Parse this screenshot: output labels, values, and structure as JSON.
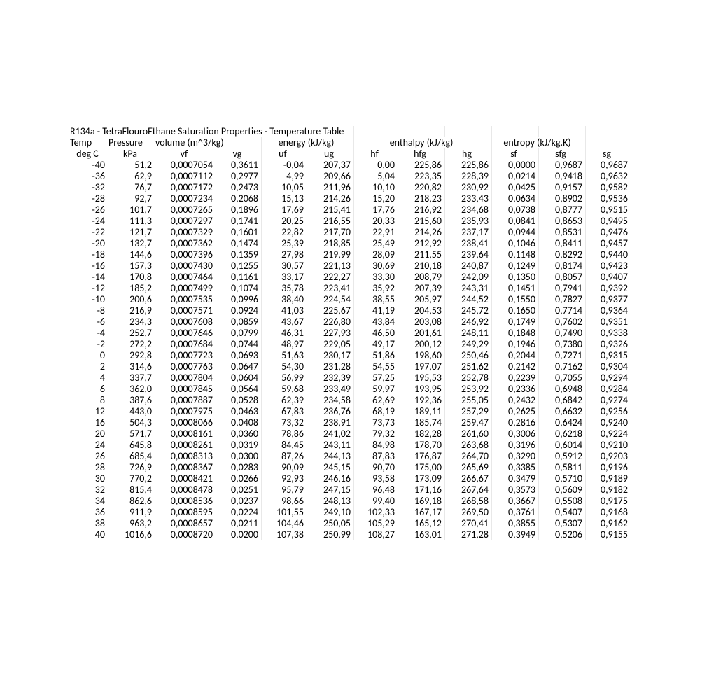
{
  "title": "R134a - TetraFlouroEthane Saturation Properties  - Temperature Table",
  "group_headers": {
    "temp": "Temp",
    "pressure": "Pressure",
    "volume": "volume (m^3/kg)",
    "energy": "energy (kJ/kg)",
    "enthalpy": "enthalpy (kJ/kg)",
    "entropy": "entropy (kJ/kg.K)"
  },
  "col_headers": {
    "temp": "deg C",
    "pressure": "kPa",
    "vf": "vf",
    "vg": "vg",
    "uf": "uf",
    "ug": "ug",
    "hf": "hf",
    "hfg": "hfg",
    "hg": "hg",
    "sf": "sf",
    "sfg": "sfg",
    "sg": "sg"
  },
  "rows": [
    [
      "-40",
      "51,2",
      "0,0007054",
      "0,3611",
      "-0,04",
      "207,37",
      "0,00",
      "225,86",
      "225,86",
      "0,0000",
      "0,9687",
      "0,9687"
    ],
    [
      "-36",
      "62,9",
      "0,0007112",
      "0,2977",
      "4,99",
      "209,66",
      "5,04",
      "223,35",
      "228,39",
      "0,0214",
      "0,9418",
      "0,9632"
    ],
    [
      "-32",
      "76,7",
      "0,0007172",
      "0,2473",
      "10,05",
      "211,96",
      "10,10",
      "220,82",
      "230,92",
      "0,0425",
      "0,9157",
      "0,9582"
    ],
    [
      "-28",
      "92,7",
      "0,0007234",
      "0,2068",
      "15,13",
      "214,26",
      "15,20",
      "218,23",
      "233,43",
      "0,0634",
      "0,8902",
      "0,9536"
    ],
    [
      "-26",
      "101,7",
      "0,0007265",
      "0,1896",
      "17,69",
      "215,41",
      "17,76",
      "216,92",
      "234,68",
      "0,0738",
      "0,8777",
      "0,9515"
    ],
    [
      "-24",
      "111,3",
      "0,0007297",
      "0,1741",
      "20,25",
      "216,55",
      "20,33",
      "215,60",
      "235,93",
      "0,0841",
      "0,8653",
      "0,9495"
    ],
    [
      "-22",
      "121,7",
      "0,0007329",
      "0,1601",
      "22,82",
      "217,70",
      "22,91",
      "214,26",
      "237,17",
      "0,0944",
      "0,8531",
      "0,9476"
    ],
    [
      "-20",
      "132,7",
      "0,0007362",
      "0,1474",
      "25,39",
      "218,85",
      "25,49",
      "212,92",
      "238,41",
      "0,1046",
      "0,8411",
      "0,9457"
    ],
    [
      "-18",
      "144,6",
      "0,0007396",
      "0,1359",
      "27,98",
      "219,99",
      "28,09",
      "211,55",
      "239,64",
      "0,1148",
      "0,8292",
      "0,9440"
    ],
    [
      "-16",
      "157,3",
      "0,0007430",
      "0,1255",
      "30,57",
      "221,13",
      "30,69",
      "210,18",
      "240,87",
      "0,1249",
      "0,8174",
      "0,9423"
    ],
    [
      "-14",
      "170,8",
      "0,0007464",
      "0,1161",
      "33,17",
      "222,27",
      "33,30",
      "208,79",
      "242,09",
      "0,1350",
      "0,8057",
      "0,9407"
    ],
    [
      "-12",
      "185,2",
      "0,0007499",
      "0,1074",
      "35,78",
      "223,41",
      "35,92",
      "207,39",
      "243,31",
      "0,1451",
      "0,7941",
      "0,9392"
    ],
    [
      "-10",
      "200,6",
      "0,0007535",
      "0,0996",
      "38,40",
      "224,54",
      "38,55",
      "205,97",
      "244,52",
      "0,1550",
      "0,7827",
      "0,9377"
    ],
    [
      "-8",
      "216,9",
      "0,0007571",
      "0,0924",
      "41,03",
      "225,67",
      "41,19",
      "204,53",
      "245,72",
      "0,1650",
      "0,7714",
      "0,9364"
    ],
    [
      "-6",
      "234,3",
      "0,0007608",
      "0,0859",
      "43,67",
      "226,80",
      "43,84",
      "203,08",
      "246,92",
      "0,1749",
      "0,7602",
      "0,9351"
    ],
    [
      "-4",
      "252,7",
      "0,0007646",
      "0,0799",
      "46,31",
      "227,93",
      "46,50",
      "201,61",
      "248,11",
      "0,1848",
      "0,7490",
      "0,9338"
    ],
    [
      "-2",
      "272,2",
      "0,0007684",
      "0,0744",
      "48,97",
      "229,05",
      "49,17",
      "200,12",
      "249,29",
      "0,1946",
      "0,7380",
      "0,9326"
    ],
    [
      "0",
      "292,8",
      "0,0007723",
      "0,0693",
      "51,63",
      "230,17",
      "51,86",
      "198,60",
      "250,46",
      "0,2044",
      "0,7271",
      "0,9315"
    ],
    [
      "2",
      "314,6",
      "0,0007763",
      "0,0647",
      "54,30",
      "231,28",
      "54,55",
      "197,07",
      "251,62",
      "0,2142",
      "0,7162",
      "0,9304"
    ],
    [
      "4",
      "337,7",
      "0,0007804",
      "0,0604",
      "56,99",
      "232,39",
      "57,25",
      "195,53",
      "252,78",
      "0,2239",
      "0,7055",
      "0,9294"
    ],
    [
      "6",
      "362,0",
      "0,0007845",
      "0,0564",
      "59,68",
      "233,49",
      "59,97",
      "193,95",
      "253,92",
      "0,2336",
      "0,6948",
      "0,9284"
    ],
    [
      "8",
      "387,6",
      "0,0007887",
      "0,0528",
      "62,39",
      "234,58",
      "62,69",
      "192,36",
      "255,05",
      "0,2432",
      "0,6842",
      "0,9274"
    ],
    [
      "12",
      "443,0",
      "0,0007975",
      "0,0463",
      "67,83",
      "236,76",
      "68,19",
      "189,11",
      "257,29",
      "0,2625",
      "0,6632",
      "0,9256"
    ],
    [
      "16",
      "504,3",
      "0,0008066",
      "0,0408",
      "73,32",
      "238,91",
      "73,73",
      "185,74",
      "259,47",
      "0,2816",
      "0,6424",
      "0,9240"
    ],
    [
      "20",
      "571,7",
      "0,0008161",
      "0,0360",
      "78,86",
      "241,02",
      "79,32",
      "182,28",
      "261,60",
      "0,3006",
      "0,6218",
      "0,9224"
    ],
    [
      "24",
      "645,8",
      "0,0008261",
      "0,0319",
      "84,45",
      "243,11",
      "84,98",
      "178,70",
      "263,68",
      "0,3196",
      "0,6014",
      "0,9210"
    ],
    [
      "26",
      "685,4",
      "0,0008313",
      "0,0300",
      "87,26",
      "244,13",
      "87,83",
      "176,87",
      "264,70",
      "0,3290",
      "0,5912",
      "0,9203"
    ],
    [
      "28",
      "726,9",
      "0,0008367",
      "0,0283",
      "90,09",
      "245,15",
      "90,70",
      "175,00",
      "265,69",
      "0,3385",
      "0,5811",
      "0,9196"
    ],
    [
      "30",
      "770,2",
      "0,0008421",
      "0,0266",
      "92,93",
      "246,16",
      "93,58",
      "173,09",
      "266,67",
      "0,3479",
      "0,5710",
      "0,9189"
    ],
    [
      "32",
      "815,4",
      "0,0008478",
      "0,0251",
      "95,79",
      "247,15",
      "96,48",
      "171,16",
      "267,64",
      "0,3573",
      "0,5609",
      "0,9182"
    ],
    [
      "34",
      "862,6",
      "0,0008536",
      "0,0237",
      "98,66",
      "248,13",
      "99,40",
      "169,18",
      "268,58",
      "0,3667",
      "0,5508",
      "0,9175"
    ],
    [
      "36",
      "911,9",
      "0,0008595",
      "0,0224",
      "101,55",
      "249,10",
      "102,33",
      "167,17",
      "269,50",
      "0,3761",
      "0,5407",
      "0,9168"
    ],
    [
      "38",
      "963,2",
      "0,0008657",
      "0,0211",
      "104,46",
      "250,05",
      "105,29",
      "165,12",
      "270,41",
      "0,3855",
      "0,5307",
      "0,9162"
    ],
    [
      "40",
      "1016,6",
      "0,0008720",
      "0,0200",
      "107,38",
      "250,99",
      "108,27",
      "163,01",
      "271,28",
      "0,3949",
      "0,5206",
      "0,9155"
    ]
  ],
  "style": {
    "font_family": "Calibri, Arial, sans-serif",
    "font_size_pt": 11,
    "text_color": "#000000",
    "background_color": "#ffffff",
    "cell_border_color": "#e8e8e8",
    "column_align": [
      "right",
      "right",
      "right",
      "right",
      "right",
      "right",
      "right",
      "right",
      "right",
      "right",
      "right",
      "right"
    ]
  }
}
